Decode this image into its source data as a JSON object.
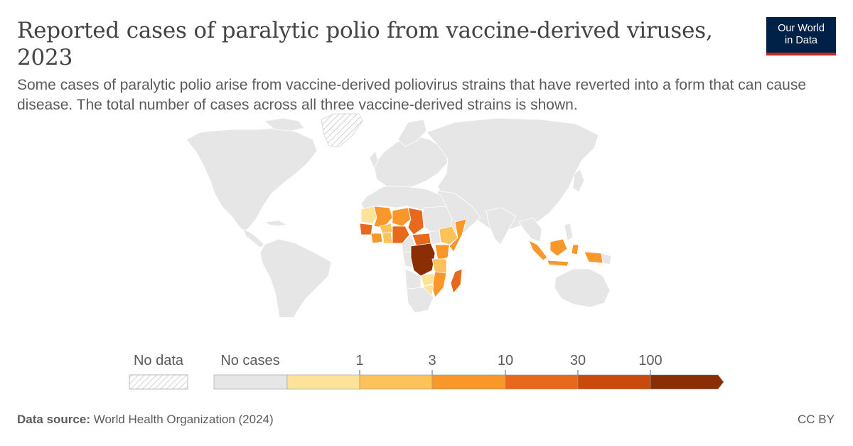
{
  "header": {
    "title": "Reported cases of paralytic polio from vaccine-derived viruses, 2023",
    "subtitle": "Some cases of paralytic polio arise from vaccine-derived poliovirus strains that have reverted into a form that can cause disease. The total number of cases across all three vaccine-derived strains is shown.",
    "logo_line1": "Our World",
    "logo_line2": "in Data"
  },
  "colors": {
    "no_cases": "#e6e6e6",
    "bin1": "#fde39a",
    "bin2": "#fdc35a",
    "bin3": "#f9972b",
    "bin4": "#e8691b",
    "bin5": "#c94a0a",
    "bin6": "#8b2e06",
    "background": "#ffffff",
    "logo_bg": "#002147",
    "logo_accent": "#ce261e"
  },
  "legend": {
    "no_data_label": "No data",
    "no_cases_label": "No cases",
    "thresholds": [
      "1",
      "3",
      "10",
      "30",
      "100"
    ]
  },
  "chart_data": {
    "type": "choropleth",
    "bins": [
      {
        "range": "0",
        "label": "No cases",
        "color": "#e6e6e6"
      },
      {
        "range": "0–1",
        "color": "#fde39a"
      },
      {
        "range": "1–3",
        "color": "#fdc35a"
      },
      {
        "range": "3–10",
        "color": "#f9972b"
      },
      {
        "range": "10–30",
        "color": "#e8691b"
      },
      {
        "range": "30–100",
        "color": "#c94a0a"
      },
      {
        "range": ">100",
        "color": "#8b2e06"
      }
    ],
    "regions": [
      {
        "name": "Mauritania",
        "bin": "0–1"
      },
      {
        "name": "Mali",
        "bin": "3–10"
      },
      {
        "name": "Niger",
        "bin": "3–10"
      },
      {
        "name": "Chad",
        "bin": "10–30"
      },
      {
        "name": "Guinea",
        "bin": "10–30"
      },
      {
        "name": "Côte d'Ivoire",
        "bin": "3–10"
      },
      {
        "name": "Burkina Faso",
        "bin": "1–3"
      },
      {
        "name": "Benin",
        "bin": "1–3"
      },
      {
        "name": "Nigeria",
        "bin": "10–30"
      },
      {
        "name": "Central African Republic",
        "bin": "10–30"
      },
      {
        "name": "Democratic Republic of Congo",
        "bin": ">100"
      },
      {
        "name": "Ethiopia",
        "bin": "1–3"
      },
      {
        "name": "Somalia",
        "bin": "3–10"
      },
      {
        "name": "Kenya",
        "bin": "3–10"
      },
      {
        "name": "Tanzania",
        "bin": "1–3"
      },
      {
        "name": "Zambia",
        "bin": "0–1"
      },
      {
        "name": "Mozambique",
        "bin": "3–10"
      },
      {
        "name": "Malawi",
        "bin": "1–3"
      },
      {
        "name": "Zimbabwe",
        "bin": "0–1"
      },
      {
        "name": "Madagascar",
        "bin": "10–30"
      },
      {
        "name": "Indonesia",
        "bin": "3–10"
      }
    ]
  },
  "footer": {
    "source_label": "Data source:",
    "source_text": "World Health Organization (2024)",
    "license": "CC BY"
  }
}
